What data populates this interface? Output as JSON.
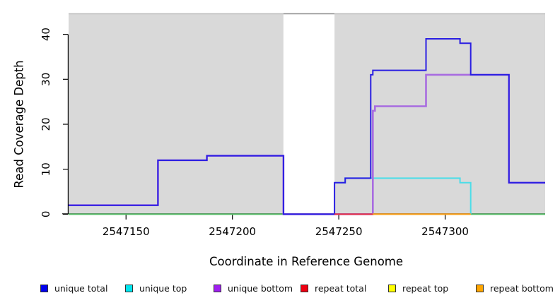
{
  "chart_data": {
    "type": "line",
    "subtype": "step-coverage",
    "title": "",
    "xlabel": "Coordinate in Reference Genome",
    "ylabel": "Read Coverage Depth",
    "xlim": [
      2547123,
      2547347
    ],
    "ylim": [
      0,
      44.5
    ],
    "xticks": [
      2547150,
      2547200,
      2547250,
      2547300
    ],
    "yticks": [
      0,
      10,
      20,
      30,
      40
    ],
    "grid": false,
    "background_regions": [
      {
        "name": "shaded-region-left",
        "x0": 2547123,
        "x1": 2547224,
        "fill": "#d9d9d9",
        "border": "#bdbdbd"
      },
      {
        "name": "unshaded-gap",
        "x0": 2547224,
        "x1": 2547248,
        "fill": "#ffffff",
        "border": "#8f8f8f"
      },
      {
        "name": "shaded-region-right",
        "x0": 2547248,
        "x1": 2547347,
        "fill": "#d9d9d9",
        "border": "#bdbdbd"
      }
    ],
    "series": [
      {
        "name": "baseline-left",
        "color": "#55bb66",
        "width": 2,
        "points": [
          [
            2547123,
            0
          ]
        ],
        "end": 2547224
      },
      {
        "name": "baseline-right",
        "color": "#55bb66",
        "width": 2,
        "points": [
          [
            2547312,
            0
          ]
        ],
        "end": 2547347
      },
      {
        "name": "unique top",
        "color": "#4cdde8",
        "width": 2,
        "points": [
          [
            2547248,
            7
          ],
          [
            2547253,
            8
          ],
          [
            2547307,
            7
          ],
          [
            2547312,
            0
          ]
        ],
        "end": 2547312
      },
      {
        "name": "unique bottom",
        "color": "#a86ce0",
        "width": 2.6,
        "points": [
          [
            2547123,
            2
          ],
          [
            2547165,
            12
          ],
          [
            2547188,
            13
          ],
          [
            2547224,
            0
          ],
          [
            2547266,
            23
          ],
          [
            2547267,
            24
          ],
          [
            2547291,
            31
          ],
          [
            2547330,
            7
          ]
        ],
        "end": 2547347
      },
      {
        "name": "unique total",
        "color": "#2a1ee2",
        "width": 2,
        "points": [
          [
            2547123,
            2
          ],
          [
            2547165,
            12
          ],
          [
            2547188,
            13
          ],
          [
            2547224,
            0
          ],
          [
            2547248,
            7
          ],
          [
            2547253,
            8
          ],
          [
            2547265,
            31
          ],
          [
            2547266,
            32
          ],
          [
            2547291,
            39
          ],
          [
            2547307,
            38
          ],
          [
            2547312,
            31
          ],
          [
            2547330,
            7
          ]
        ],
        "end": 2547347
      },
      {
        "name": "repeat total",
        "color": "#e83344",
        "width": 2,
        "points": [
          [
            2547248,
            0
          ]
        ],
        "end": 2547312
      },
      {
        "name": "repeat top",
        "color": "#f5e613",
        "width": 2,
        "points": [
          [
            2547266,
            0
          ]
        ],
        "end": 2547312
      },
      {
        "name": "repeat bottom",
        "color": "#f79e1b",
        "width": 2,
        "points": [
          [
            2547266,
            0
          ]
        ],
        "end": 2547312
      }
    ],
    "legend": {
      "position": "bottom",
      "items": [
        {
          "label": "unique total",
          "color": "#0000ee"
        },
        {
          "label": "unique top",
          "color": "#00e5ee"
        },
        {
          "label": "unique bottom",
          "color": "#a020f0"
        },
        {
          "label": "repeat total",
          "color": "#ee0011"
        },
        {
          "label": "repeat top",
          "color": "#ffff00"
        },
        {
          "label": "repeat bottom",
          "color": "#ffa500"
        }
      ]
    }
  }
}
